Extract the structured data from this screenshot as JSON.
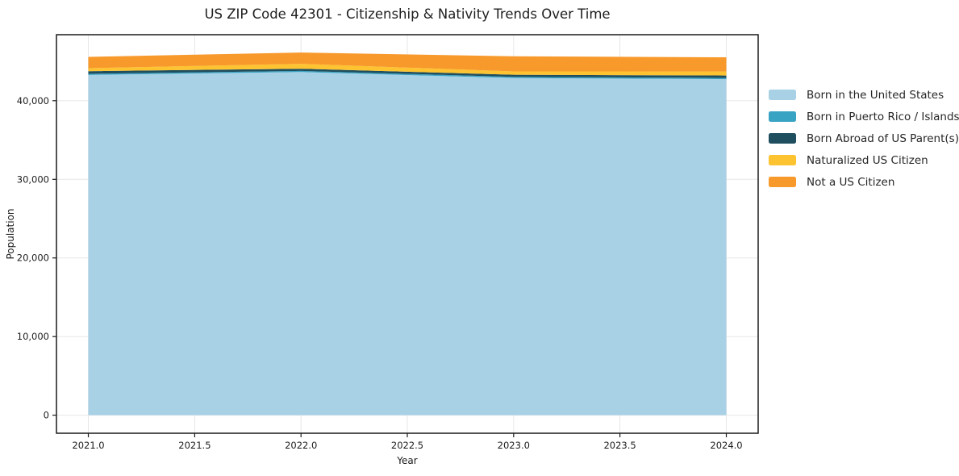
{
  "title": "US ZIP Code 42301 - Citizenship & Nativity Trends Over Time",
  "chart_data": {
    "type": "area",
    "stacked": true,
    "title": "US ZIP Code 42301 - Citizenship & Nativity Trends Over Time",
    "xlabel": "Year",
    "ylabel": "Population",
    "x": [
      2021,
      2022,
      2023,
      2024
    ],
    "series": [
      {
        "name": "Born in the United States",
        "color": "#a8d1e6",
        "values": [
          43280,
          43650,
          42890,
          42760
        ]
      },
      {
        "name": "Born in Puerto Rico / Islands",
        "color": "#38a3c3",
        "values": [
          140,
          140,
          140,
          140
        ]
      },
      {
        "name": "Born Abroad of US Parent(s)",
        "color": "#1f4e5f",
        "values": [
          340,
          280,
          280,
          310
        ]
      },
      {
        "name": "Naturalized US Citizen",
        "color": "#fdc330",
        "values": [
          380,
          620,
          420,
          510
        ]
      },
      {
        "name": "Not a US Citizen",
        "color": "#f8992b",
        "values": [
          1440,
          1440,
          1920,
          1810
        ]
      }
    ],
    "totals": [
      45580,
      46130,
      45650,
      45530
    ],
    "xticks": [
      2021.0,
      2021.5,
      2022.0,
      2022.5,
      2023.0,
      2023.5,
      2024.0
    ],
    "xtick_labels": [
      "2021.0",
      "2021.5",
      "2022.0",
      "2022.5",
      "2023.0",
      "2023.5",
      "2024.0"
    ],
    "yticks": [
      0,
      10000,
      20000,
      30000,
      40000
    ],
    "ytick_labels": [
      "0",
      "10,000",
      "20,000",
      "30,000",
      "40,000"
    ],
    "xlim": [
      2020.85,
      2024.15
    ],
    "ylim": [
      -2300,
      48400
    ],
    "grid": true,
    "grid_color": "#e7e7e7",
    "spine_color": "#1a1a1a",
    "legend_position": "right"
  }
}
